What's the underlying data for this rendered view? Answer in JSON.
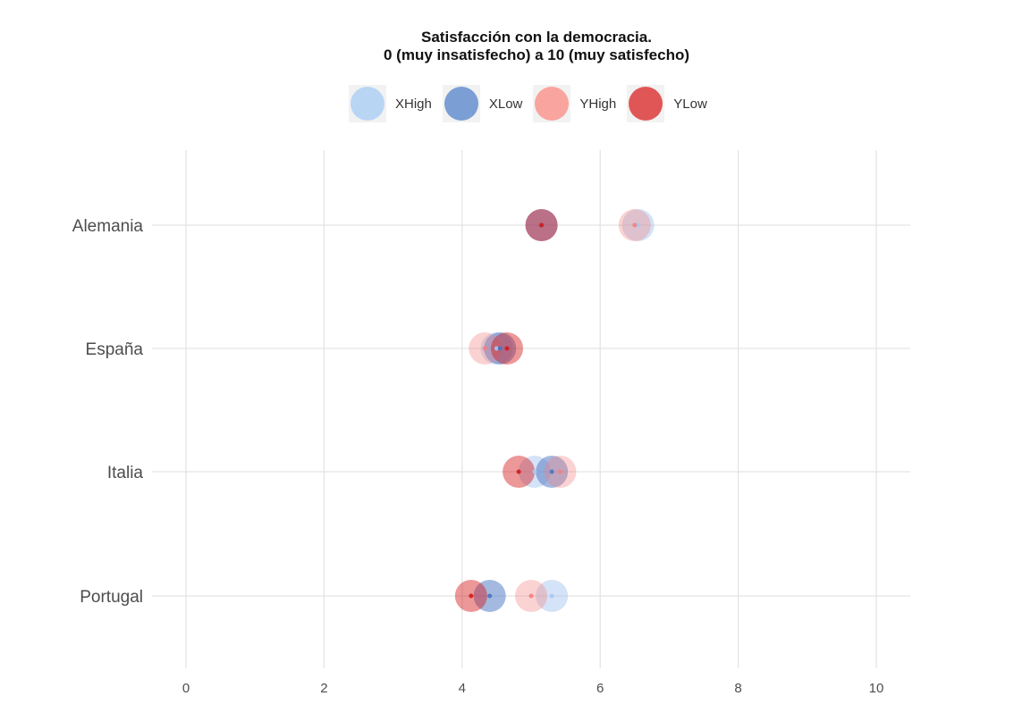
{
  "chart_data": {
    "type": "scatter",
    "title_line1": "Satisfacción con la democracia.",
    "title_line2": "0 (muy insatisfecho) a 10 (muy satisfecho)",
    "xlabel": "",
    "ylabel": "",
    "xlim": [
      -0.3,
      10.5
    ],
    "xticks": [
      0,
      2,
      4,
      6,
      8,
      10
    ],
    "xtick_labels": [
      "0",
      "2",
      "4",
      "6",
      "8",
      "10"
    ],
    "categories": [
      "Alemania",
      "España",
      "Italia",
      "Portugal"
    ],
    "grid": true,
    "legend_position": "top",
    "series": [
      {
        "name": "XHigh",
        "color": "#a9c8ef",
        "opacity": 0.5,
        "values": [
          6.55,
          4.5,
          5.05,
          5.3
        ]
      },
      {
        "name": "XLow",
        "color": "#4a74c1",
        "opacity": 0.5,
        "values": [
          5.15,
          4.55,
          5.3,
          4.4
        ]
      },
      {
        "name": "YHigh",
        "color": "#f47f7f",
        "opacity": 0.35,
        "values": [
          6.5,
          4.33,
          5.42,
          5.0
        ]
      },
      {
        "name": "YLow",
        "color": "#d5191b",
        "opacity": 0.45,
        "values": [
          5.15,
          4.65,
          4.82,
          4.13
        ]
      }
    ],
    "legend_colors": [
      "#b9d5f4",
      "#7b9fd4",
      "#f9a49e",
      "#e05656"
    ]
  }
}
